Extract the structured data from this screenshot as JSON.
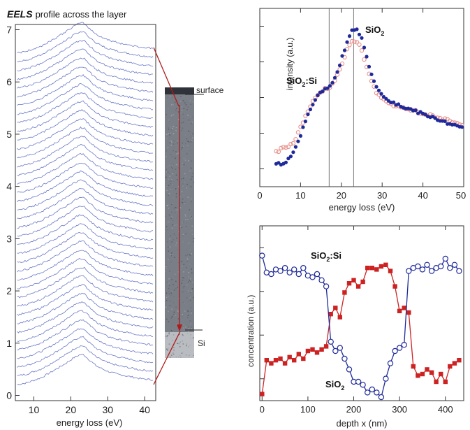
{
  "chart_data": [
    {
      "type": "line",
      "title_bold": "EELS",
      "title_rest": "profile across the layer",
      "xlabel": "energy loss (eV)",
      "ylabel": "",
      "xlim": [
        5,
        43
      ],
      "ylim": [
        -0.1,
        7.1
      ],
      "xticks": [
        10,
        20,
        30,
        40
      ],
      "yticks": [
        0,
        1,
        2,
        3,
        4,
        5,
        6,
        7
      ],
      "series_count": 39,
      "offset_step": 0.167,
      "peak_x": 23,
      "line_color": "#6a78c8",
      "series_shape": {
        "x": [
          5,
          8,
          12,
          16,
          19,
          21,
          22.5,
          23.5,
          25,
          27,
          30,
          33,
          36,
          39,
          42
        ],
        "y": [
          0.0,
          0.04,
          0.14,
          0.3,
          0.43,
          0.53,
          0.58,
          0.58,
          0.48,
          0.36,
          0.26,
          0.2,
          0.16,
          0.12,
          0.1
        ]
      }
    },
    {
      "type": "scatter",
      "xlabel": "energy loss (eV)",
      "ylabel": "intensity (a.u.)",
      "xlim": [
        0,
        50
      ],
      "xticks": [
        0,
        10,
        20,
        30,
        40,
        50
      ],
      "xticklabels": [
        "0",
        "10",
        "20",
        "30",
        "40",
        "50"
      ],
      "vlines": [
        17,
        23
      ],
      "annotations": [
        {
          "base": "SiO",
          "sub": "2",
          "rest": ""
        },
        {
          "base": "SiO",
          "sub": "2",
          "rest": ":Si"
        }
      ],
      "series": [
        {
          "name": "SiO2",
          "color": "#1f2a9a",
          "x": [
            4,
            5,
            6,
            7,
            8,
            9,
            10,
            11,
            12,
            13,
            14,
            15,
            16,
            17,
            18,
            19,
            20,
            21,
            22,
            23,
            24,
            25,
            26,
            27,
            28,
            29,
            30,
            32,
            34,
            36,
            38,
            40,
            42,
            44,
            46,
            48,
            50
          ],
          "y": [
            0.05,
            0.05,
            0.06,
            0.08,
            0.11,
            0.17,
            0.25,
            0.33,
            0.4,
            0.46,
            0.51,
            0.54,
            0.56,
            0.58,
            0.62,
            0.68,
            0.76,
            0.85,
            0.93,
            0.97,
            0.96,
            0.9,
            0.8,
            0.7,
            0.62,
            0.56,
            0.52,
            0.48,
            0.45,
            0.43,
            0.41,
            0.39,
            0.37,
            0.35,
            0.33,
            0.31,
            0.29
          ]
        },
        {
          "name": "SiO2:Si",
          "color": "#e8918c",
          "x": [
            4,
            5,
            6,
            7,
            8,
            9,
            10,
            11,
            12,
            13,
            14,
            15,
            16,
            17,
            18,
            19,
            20,
            21,
            22,
            23,
            24,
            25,
            26,
            27,
            28,
            29,
            30,
            32,
            34,
            36,
            38,
            40,
            42,
            44,
            46,
            48,
            50
          ],
          "y": [
            0.13,
            0.15,
            0.16,
            0.17,
            0.19,
            0.23,
            0.3,
            0.36,
            0.42,
            0.47,
            0.51,
            0.54,
            0.56,
            0.57,
            0.6,
            0.65,
            0.72,
            0.8,
            0.86,
            0.89,
            0.88,
            0.82,
            0.73,
            0.64,
            0.57,
            0.52,
            0.49,
            0.46,
            0.44,
            0.42,
            0.41,
            0.39,
            0.38,
            0.36,
            0.35,
            0.33,
            0.32
          ]
        }
      ]
    },
    {
      "type": "line",
      "xlabel": "depth x (nm)",
      "ylabel": "concentration (a.u.)",
      "xlim": [
        -5,
        440
      ],
      "ylim": [
        0,
        1
      ],
      "xticks": [
        0,
        100,
        200,
        300,
        400
      ],
      "annotations": [
        {
          "base": "SiO",
          "sub": "2",
          "rest": ":Si"
        },
        {
          "base": "SiO",
          "sub": "2",
          "rest": ""
        }
      ],
      "series": [
        {
          "name": "SiO2:Si",
          "color": "#cc2222",
          "marker": "square-filled",
          "x": [
            0,
            10,
            20,
            30,
            40,
            50,
            60,
            70,
            80,
            90,
            100,
            110,
            120,
            130,
            140,
            150,
            160,
            170,
            180,
            190,
            200,
            210,
            220,
            230,
            240,
            250,
            260,
            270,
            280,
            290,
            300,
            310,
            320,
            330,
            340,
            350,
            360,
            370,
            380,
            390,
            400,
            410,
            420,
            430
          ],
          "y": [
            0.02,
            0.24,
            0.22,
            0.24,
            0.25,
            0.22,
            0.26,
            0.24,
            0.28,
            0.25,
            0.3,
            0.31,
            0.29,
            0.31,
            0.33,
            0.54,
            0.58,
            0.52,
            0.68,
            0.74,
            0.76,
            0.72,
            0.75,
            0.84,
            0.84,
            0.83,
            0.85,
            0.86,
            0.82,
            0.72,
            0.56,
            0.58,
            0.55,
            0.2,
            0.14,
            0.15,
            0.18,
            0.16,
            0.1,
            0.15,
            0.1,
            0.2,
            0.22,
            0.24
          ]
        },
        {
          "name": "SiO2",
          "color": "#1f2a9a",
          "marker": "circle-open",
          "x": [
            0,
            10,
            20,
            30,
            40,
            50,
            60,
            70,
            80,
            90,
            100,
            110,
            120,
            130,
            140,
            150,
            160,
            170,
            180,
            190,
            200,
            210,
            220,
            230,
            240,
            250,
            260,
            270,
            280,
            290,
            300,
            310,
            320,
            330,
            340,
            350,
            360,
            370,
            380,
            390,
            400,
            410,
            420,
            430
          ],
          "y": [
            0.92,
            0.81,
            0.8,
            0.83,
            0.82,
            0.84,
            0.81,
            0.83,
            0.8,
            0.84,
            0.79,
            0.78,
            0.8,
            0.76,
            0.72,
            0.36,
            0.3,
            0.32,
            0.25,
            0.18,
            0.1,
            0.1,
            0.08,
            0.03,
            0.05,
            0.03,
            0.0,
            0.12,
            0.22,
            0.3,
            0.32,
            0.34,
            0.82,
            0.84,
            0.85,
            0.83,
            0.86,
            0.82,
            0.84,
            0.85,
            0.9,
            0.84,
            0.86,
            0.82
          ]
        }
      ]
    }
  ],
  "tem_image": {
    "labels": [
      "surface",
      "Si"
    ],
    "colors": {
      "top_band": "#2f3238",
      "body": "#7a7e86",
      "bottom": "#b9bcc0",
      "arrow": "#b01c1c"
    }
  }
}
